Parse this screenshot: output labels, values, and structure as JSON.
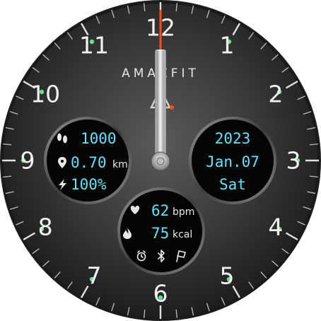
{
  "brand": "AMAZFIT",
  "dial_numbers": [
    "12",
    "1",
    "2",
    "3",
    "4",
    "5",
    "6",
    "7",
    "8",
    "9",
    "10",
    "11"
  ],
  "activity": {
    "steps": "1000",
    "distance": "0.70",
    "distance_unit": "km",
    "battery": "100%"
  },
  "date": {
    "year": "2023",
    "month_day": "Jan.07",
    "weekday": "Sat"
  },
  "health": {
    "heart_rate": "62",
    "heart_rate_unit": "bpm",
    "calories": "75",
    "calories_unit": "kcal"
  },
  "time": {
    "hour": 0,
    "minute": 0,
    "second": 0
  },
  "icons": {
    "steps": "footprints-icon",
    "distance": "location-pin-icon",
    "battery": "lightning-icon",
    "heart": "heart-icon",
    "calories": "flame-icon",
    "alarm": "alarm-clock-icon",
    "bluetooth": "bluetooth-icon",
    "goal": "finish-flag-icon"
  },
  "colors": {
    "digits": "#5fe6ff",
    "second_hand": "#ff4a1c",
    "marker_dots": "#66e08a",
    "subdial": "#050505",
    "bezel": "#2b2b2b"
  }
}
